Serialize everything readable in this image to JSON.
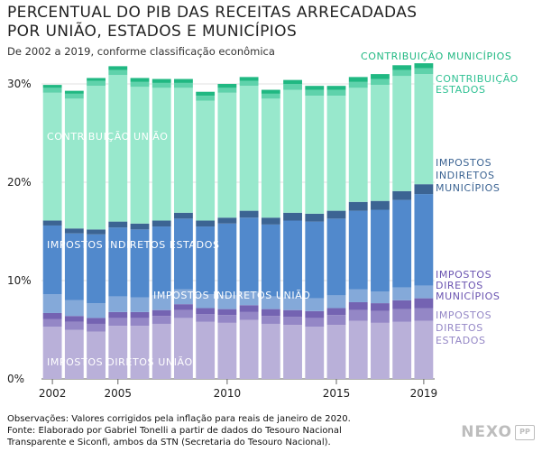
{
  "title": "PERCENTUAL DO PIB DAS RECEITAS ARRECADADAS POR UNIÃO, ESTADOS E MUNICÍPIOS",
  "subtitle": "De 2002 a 2019, conforme classificação econômica",
  "footnote": {
    "line1": "Observações: Valores corrigidos pela inflação para reais de janeiro de 2020.",
    "line2": "Fonte: Elaborado por Gabriel Tonelli a partir de dados do Tesouro Nacional",
    "line3": "Transparente e Siconfi, ambos da STN (Secretaria do Tesouro Nacional)."
  },
  "logo": {
    "text": "NEXO",
    "mark": "PP"
  },
  "chart_data": {
    "type": "bar",
    "stacked": true,
    "categories": [
      2002,
      2003,
      2004,
      2005,
      2006,
      2007,
      2008,
      2009,
      2010,
      2011,
      2012,
      2013,
      2014,
      2015,
      2016,
      2017,
      2018,
      2019
    ],
    "x_tick_labels": [
      "2002",
      "2005",
      "2010",
      "2015",
      "2019"
    ],
    "y_ticks": [
      0,
      10,
      20,
      30
    ],
    "y_tick_labels": [
      "0%",
      "10%",
      "20%",
      "30%"
    ],
    "ylim": [
      0,
      32
    ],
    "grid": true,
    "series": [
      {
        "name": "IMPOSTOS DIRETOS UNIÃO",
        "color": "#b9b0d9",
        "values": [
          5.3,
          5.0,
          4.8,
          5.4,
          5.4,
          5.6,
          6.2,
          5.8,
          5.7,
          6.0,
          5.6,
          5.5,
          5.3,
          5.5,
          5.9,
          5.7,
          5.8,
          5.9
        ]
      },
      {
        "name": "IMPOSTOS DIRETOS ESTADOS",
        "color": "#9487c6",
        "values": [
          0.8,
          0.8,
          0.8,
          0.8,
          0.8,
          0.8,
          0.8,
          0.8,
          0.8,
          0.8,
          0.8,
          0.8,
          0.9,
          1.0,
          1.1,
          1.2,
          1.3,
          1.3
        ]
      },
      {
        "name": "IMPOSTOS DIRETOS MUNICÍPIOS",
        "color": "#7463b2",
        "values": [
          0.6,
          0.6,
          0.6,
          0.6,
          0.6,
          0.6,
          0.6,
          0.6,
          0.6,
          0.7,
          0.7,
          0.7,
          0.7,
          0.7,
          0.8,
          0.8,
          0.9,
          1.0
        ]
      },
      {
        "name": "IMPOSTOS INDIRETOS UNIÃO",
        "color": "#84a9d9",
        "values": [
          1.9,
          1.6,
          1.5,
          1.6,
          1.5,
          1.5,
          1.5,
          1.4,
          1.4,
          1.4,
          1.3,
          1.3,
          1.3,
          1.3,
          1.3,
          1.2,
          1.3,
          1.3
        ]
      },
      {
        "name": "IMPOSTOS INDIRETOS ESTADOS",
        "color": "#5189cc",
        "values": [
          7.0,
          6.8,
          7.0,
          7.0,
          6.9,
          7.0,
          7.2,
          6.9,
          7.3,
          7.5,
          7.3,
          7.8,
          7.8,
          7.8,
          8.0,
          8.3,
          8.9,
          9.3
        ]
      },
      {
        "name": "IMPOSTOS INDIRETOS MUNICÍPIOS",
        "color": "#3c6493",
        "values": [
          0.5,
          0.5,
          0.5,
          0.6,
          0.6,
          0.6,
          0.6,
          0.6,
          0.6,
          0.7,
          0.7,
          0.8,
          0.8,
          0.8,
          0.9,
          0.9,
          0.9,
          1.0
        ]
      },
      {
        "name": "CONTRIBUIÇÃO UNIÃO",
        "color": "#98e8cc",
        "values": [
          13.0,
          13.2,
          14.6,
          14.9,
          13.9,
          13.5,
          12.7,
          12.2,
          12.7,
          12.7,
          12.1,
          12.5,
          12.0,
          11.7,
          11.6,
          11.8,
          11.7,
          11.2
        ]
      },
      {
        "name": "CONTRIBUIÇÃO ESTADOS",
        "color": "#5fd2ab",
        "values": [
          0.5,
          0.5,
          0.5,
          0.5,
          0.5,
          0.5,
          0.5,
          0.5,
          0.5,
          0.5,
          0.5,
          0.6,
          0.6,
          0.6,
          0.6,
          0.6,
          0.6,
          0.6
        ]
      },
      {
        "name": "CONTRIBUIÇÃO MUNICÍPIOS",
        "color": "#20b882",
        "values": [
          0.3,
          0.3,
          0.3,
          0.4,
          0.4,
          0.4,
          0.4,
          0.4,
          0.4,
          0.4,
          0.4,
          0.4,
          0.4,
          0.4,
          0.5,
          0.5,
          0.5,
          0.5
        ]
      }
    ],
    "labels": [
      {
        "series": 0,
        "lines": [
          "IMPOSTOS DIRETOS UNIÃO"
        ],
        "color": "#ffffff"
      },
      {
        "series": 1,
        "lines": [
          "IMPOSTOS",
          "DIRETOS",
          "ESTADOS"
        ],
        "color": "#9487c6"
      },
      {
        "series": 2,
        "lines": [
          "IMPOSTOS",
          "DIRETOS",
          "MUNICÍPIOS"
        ],
        "color": "#6a53b0"
      },
      {
        "series": 3,
        "lines": [
          "IMPOSTOS INDIRETOS UNIÃO"
        ],
        "color": "#ffffff"
      },
      {
        "series": 4,
        "lines": [
          "IMPOSTOS INDIRETOS ESTADOS"
        ],
        "color": "#ffffff"
      },
      {
        "series": 5,
        "lines": [
          "IMPOSTOS",
          "INDIRETOS",
          "MUNICÍPIOS"
        ],
        "color": "#3c6493"
      },
      {
        "series": 6,
        "lines": [
          "CONTRIBUIÇÃO UNIÃO"
        ],
        "color": "#ffffff"
      },
      {
        "series": 7,
        "lines": [
          "CONTRIBUIÇÃO",
          "ESTADOS"
        ],
        "color": "#2fc193"
      },
      {
        "series": 8,
        "lines": [
          "CONTRIBUIÇÃO MUNICÍPIOS"
        ],
        "color": "#20b882"
      }
    ]
  }
}
